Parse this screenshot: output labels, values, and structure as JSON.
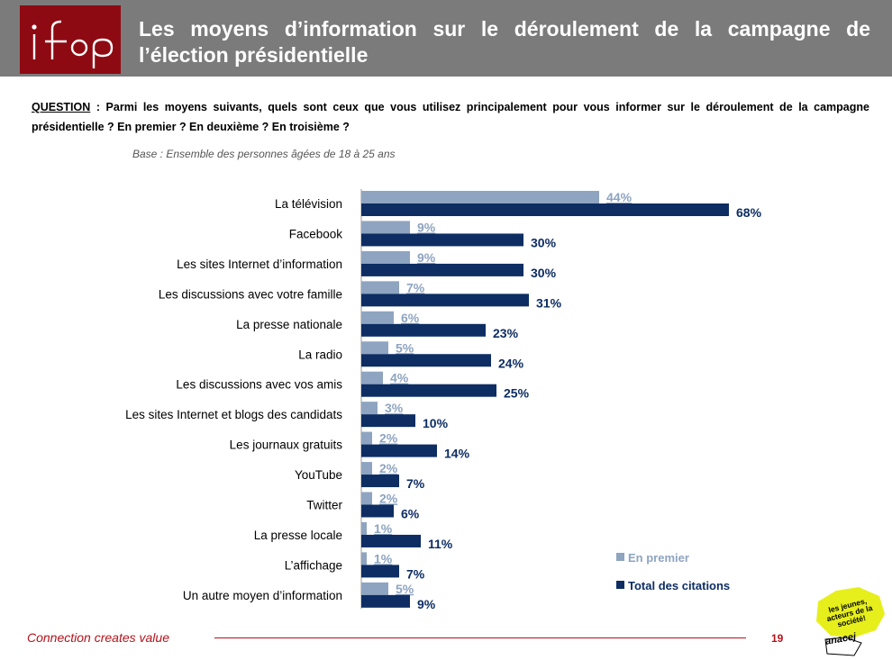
{
  "header": {
    "logo_text": "ifop",
    "title": "Les moyens d’information sur le déroulement de la campagne de l’élection présidentielle"
  },
  "question": {
    "label": "QUESTION",
    "text": " : Parmi les moyens suivants, quels sont ceux que vous utilisez principalement pour vous informer sur le déroulement de la campagne présidentielle ? En premier ? En deuxième ? En troisième ?"
  },
  "base": "Base : Ensemble des personnes âgées de 18 à 25 ans",
  "chart_data": {
    "type": "bar",
    "orientation": "horizontal",
    "categories": [
      "La télévision",
      "Facebook",
      "Les sites Internet d’information",
      "Les discussions avec votre famille",
      "La presse nationale",
      "La radio",
      "Les discussions avec vos amis",
      "Les sites Internet et blogs des candidats",
      "Les journaux gratuits",
      "YouTube",
      "Twitter",
      "La presse locale",
      "L’affichage",
      "Un autre moyen d’information"
    ],
    "series": [
      {
        "name": "En premier",
        "color": "#8ea4c0",
        "values": [
          44,
          9,
          9,
          7,
          6,
          5,
          4,
          3,
          2,
          2,
          2,
          1,
          1,
          5
        ]
      },
      {
        "name": "Total des citations",
        "color": "#0d2d63",
        "values": [
          68,
          30,
          30,
          31,
          23,
          24,
          25,
          10,
          14,
          7,
          6,
          11,
          7,
          9
        ]
      }
    ],
    "value_suffix": "%",
    "xlim": [
      0,
      70
    ],
    "legend_position": "bottom-right"
  },
  "footer": {
    "tagline": "Connection creates value",
    "page_number": "19",
    "badge_text": "les jeunes, acteurs de la société!",
    "badge_brand": "anacej"
  }
}
